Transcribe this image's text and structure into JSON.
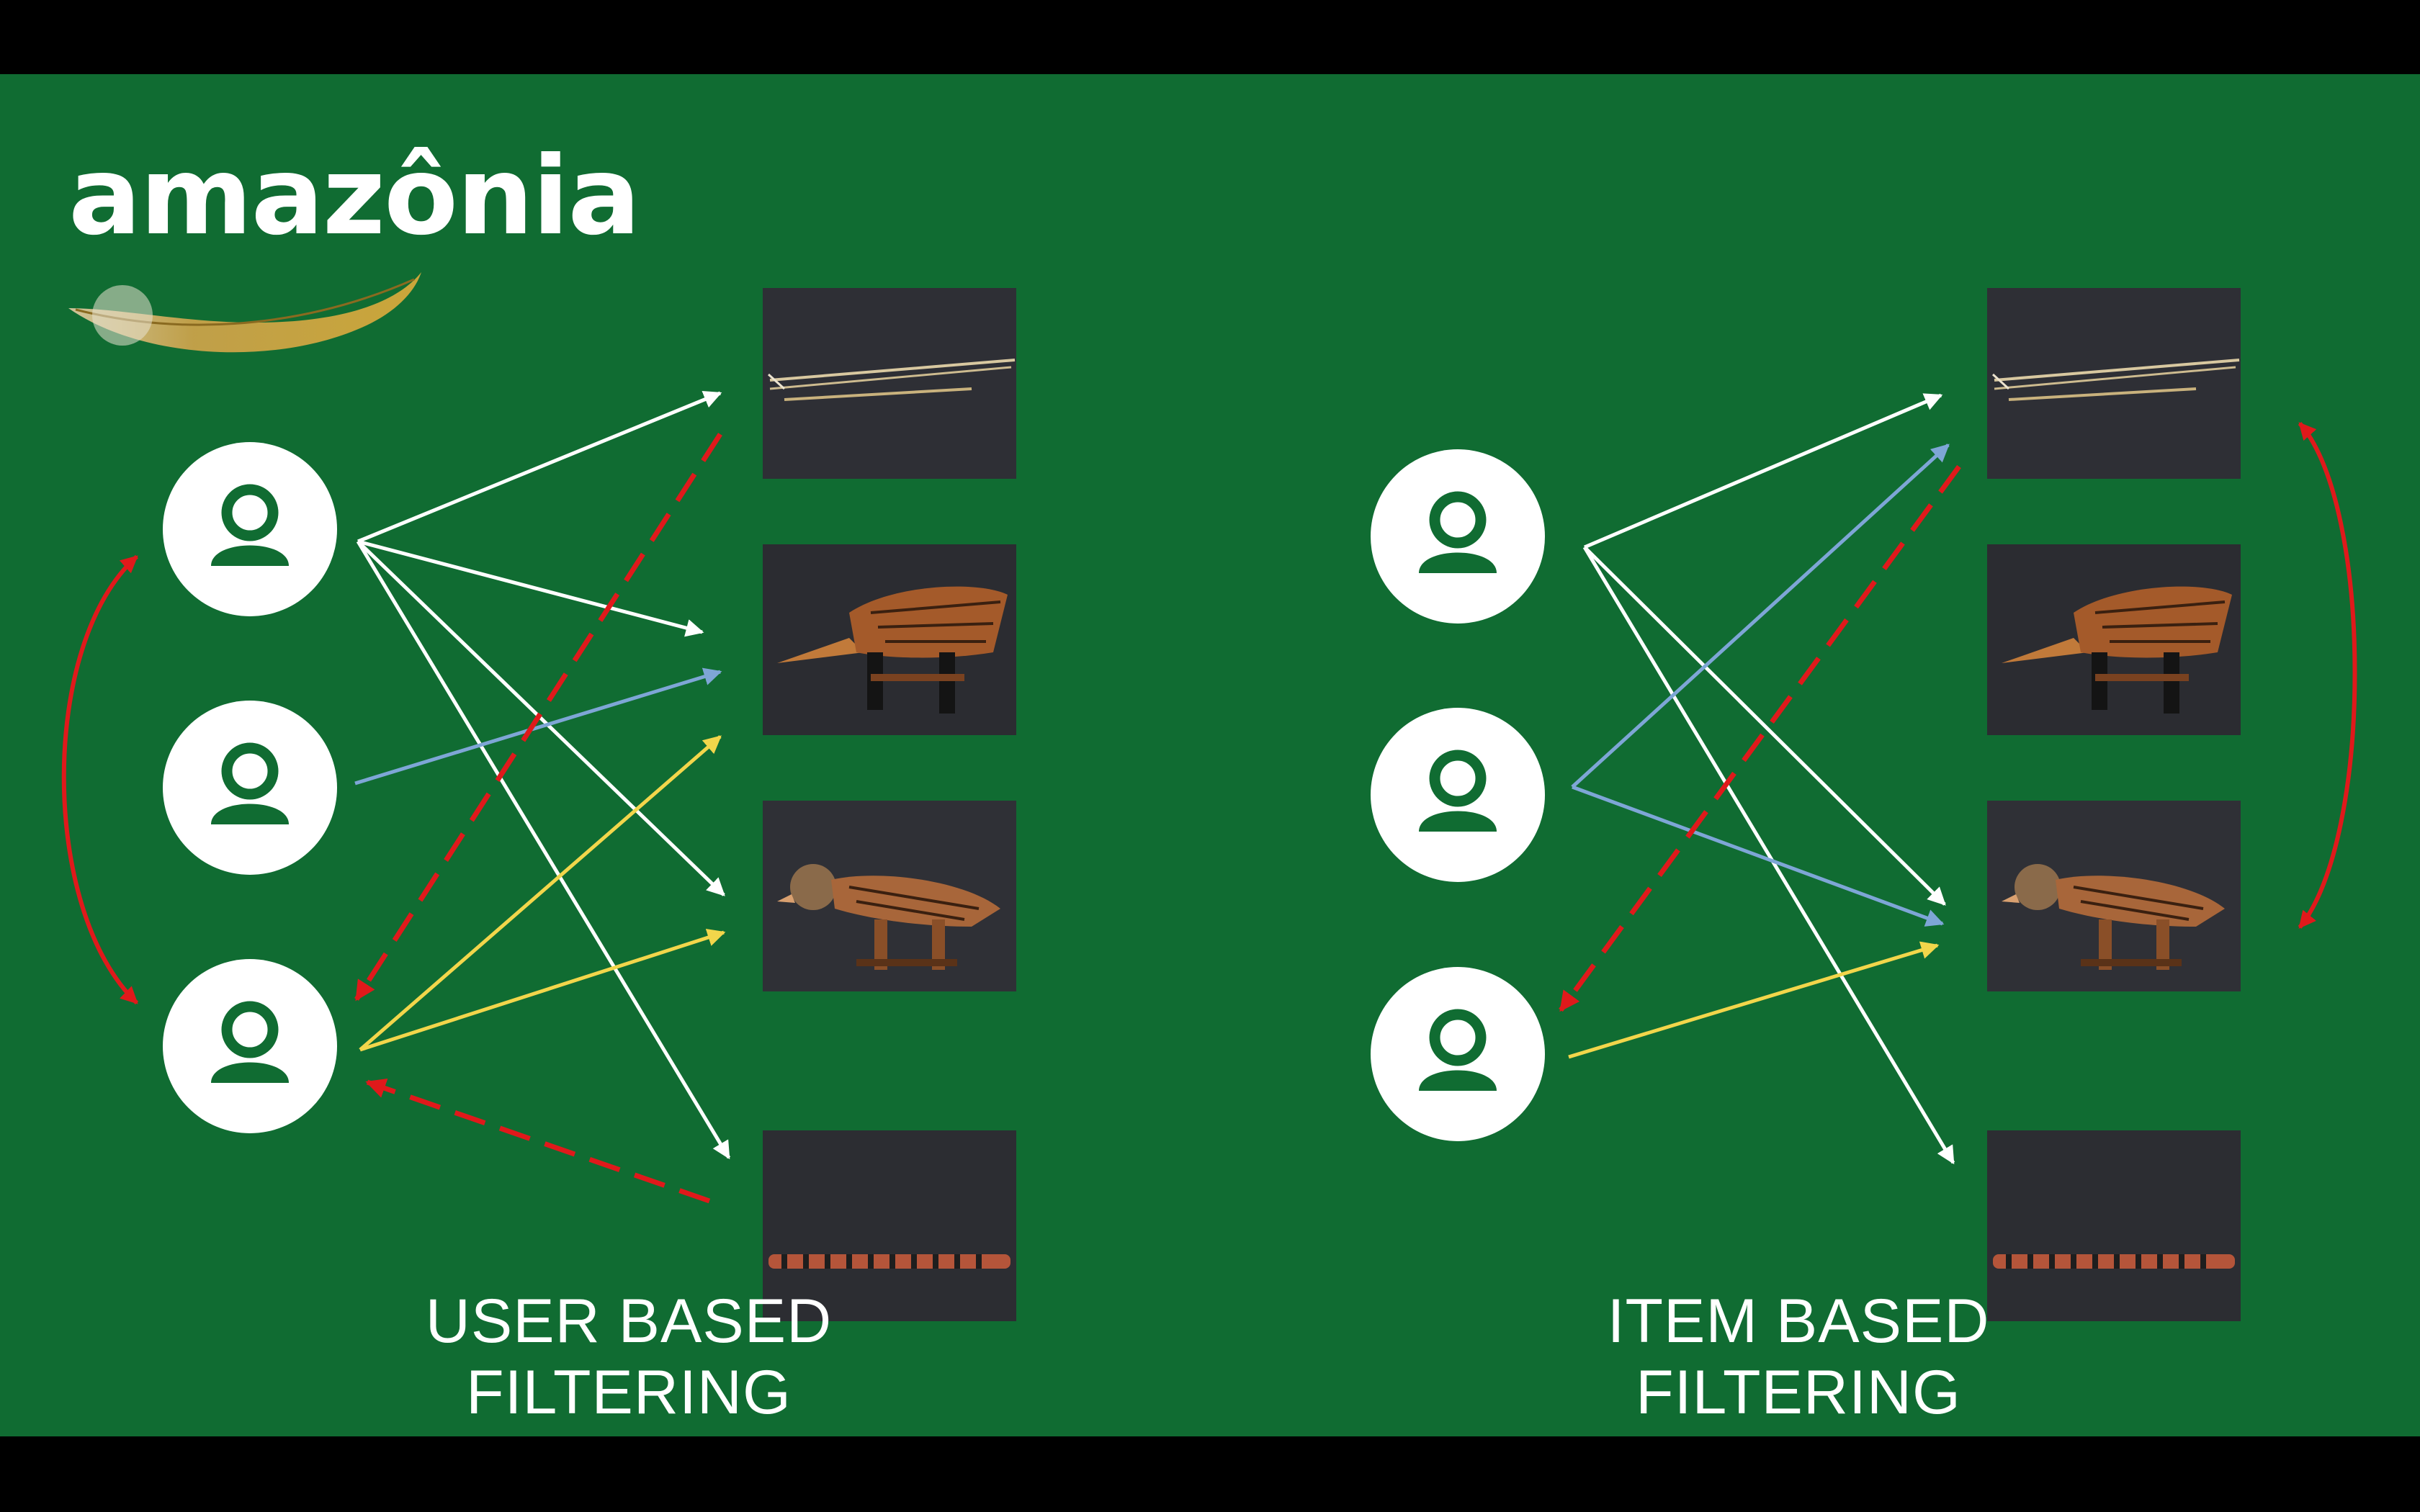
{
  "logo": {
    "text": "amazônia",
    "icon": "feather-icon"
  },
  "panels": [
    {
      "caption": "USER BASED FILTERING"
    },
    {
      "caption": "ITEM BASED FILTERING"
    }
  ],
  "users": {
    "icon": "user-icon",
    "count_per_panel": 3
  },
  "items": [
    {
      "name": "bow-and-arrows",
      "icon": "bow-photo"
    },
    {
      "name": "wooden-bird-carving",
      "icon": "bird-carving-photo"
    },
    {
      "name": "wooden-bird-bench",
      "icon": "bird-bench-photo"
    },
    {
      "name": "striped-flute",
      "icon": "flute-photo"
    }
  ],
  "colors": {
    "background": "#106c32",
    "rating": "#ffffff",
    "user2_rating": "#7ea6d6",
    "user3_rating": "#f2d64b",
    "recommendation": "#e0191b"
  }
}
